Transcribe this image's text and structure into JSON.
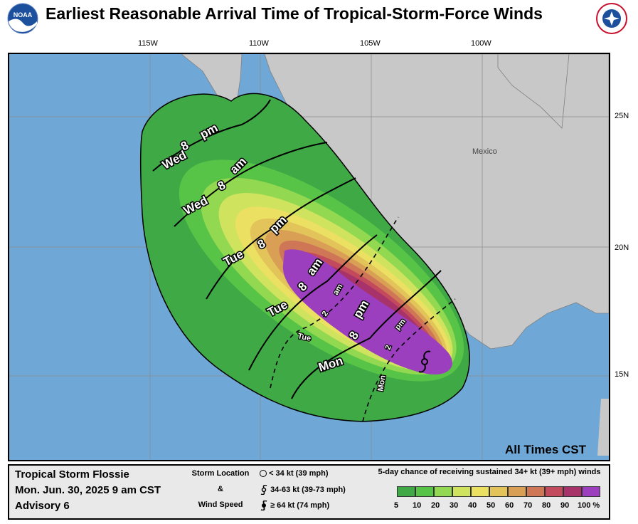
{
  "title": "Earliest Reasonable Arrival Time of Tropical-Storm-Force Winds",
  "logos": {
    "left": "NOAA",
    "right": "NATIONAL WEATHER SERVICE"
  },
  "map": {
    "lon_labels": [
      "115W",
      "110W",
      "105W",
      "100W"
    ],
    "lat_labels": [
      "25N",
      "20N",
      "15N"
    ],
    "country_label": "Mexico",
    "times_note": "All Times CST",
    "solid_contours": [
      {
        "label": [
          "Wed",
          "8",
          "pm"
        ]
      },
      {
        "label": [
          "Wed",
          "8",
          "am"
        ]
      },
      {
        "label": [
          "Tue",
          "8",
          "pm"
        ]
      },
      {
        "label": [
          "Tue",
          "8",
          "am"
        ]
      },
      {
        "label": [
          "Mon",
          "8",
          "pm"
        ]
      }
    ],
    "dashed_contours": [
      {
        "label": [
          "Tue",
          "2",
          "am"
        ]
      },
      {
        "label": [
          "Mon",
          "2",
          "pm"
        ]
      }
    ]
  },
  "legend": {
    "storm_name": "Tropical Storm Flossie",
    "date": "Mon. Jun. 30, 2025  9 am CST",
    "advisory": "Advisory 6",
    "storm_location_label": "Storm Location",
    "amp": "&",
    "wind_speed_label": "Wind Speed",
    "rows": [
      "< 34 kt (39 mph)",
      "34-63 kt (39-73 mph)",
      "≥ 64 kt (74 mph)"
    ],
    "prob_title": "5-day chance of receiving sustained 34+ kt (39+ mph) winds",
    "prob_labels": [
      "5",
      "10",
      "20",
      "30",
      "40",
      "50",
      "60",
      "70",
      "80",
      "90",
      "100 %"
    ],
    "prob_colors": [
      "#3fa945",
      "#58c447",
      "#92d850",
      "#cfe35f",
      "#ebe061",
      "#e2c45b",
      "#d9a055",
      "#cf7656",
      "#c24a5c",
      "#a8336a",
      "#9b3fbf"
    ]
  }
}
